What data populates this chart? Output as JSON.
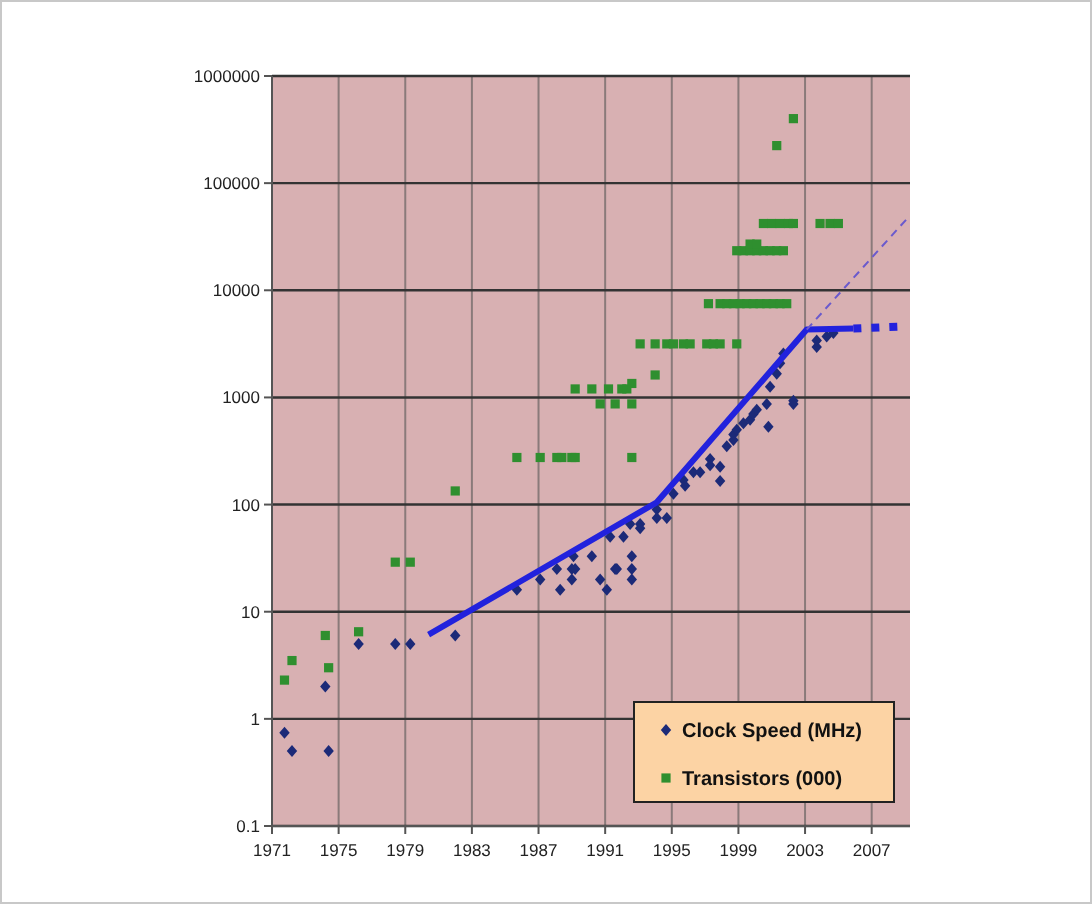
{
  "chart_data": {
    "type": "scatter",
    "log": "y",
    "grid": true,
    "legend": "bottom right",
    "xlim": [
      1971,
      2009.3
    ],
    "xticks": [
      1971,
      1975,
      1979,
      1983,
      1987,
      1991,
      1995,
      1999,
      2003,
      2007
    ],
    "ylim": [
      0.1,
      1000000
    ],
    "yticks": [
      0.1,
      1,
      10,
      100,
      1000,
      10000,
      100000,
      1000000
    ],
    "series": [
      {
        "name": "Clock Speed (MHz)",
        "marker": "diamond",
        "color": "#1c2a78",
        "x": [
          1971.75,
          1972.2,
          1974.2,
          1974.4,
          1976.2,
          1978.4,
          1979.3,
          1982,
          1985.7,
          1987.1,
          1988.1,
          1988.3,
          1989,
          1989,
          1989.2,
          1989.1,
          1990.2,
          1990.7,
          1991.1,
          1991.3,
          1991.6,
          1991.7,
          1992.1,
          1992.5,
          1992.6,
          1992.6,
          1992.6,
          1993.1,
          1993.1,
          1994.1,
          1994.1,
          1994.7,
          1995.1,
          1995.7,
          1995.8,
          1996.3,
          1996.7,
          1997.3,
          1997.3,
          1997.9,
          1997.9,
          1998.3,
          1998.7,
          1998.7,
          1998.9,
          1999.3,
          1999.7,
          1999.9,
          2000.1,
          2000.7,
          2000.8,
          2000.9,
          2001.3,
          2001.5,
          2001.7,
          2002.3,
          2002.3,
          2003.7,
          2003.7,
          2004.3,
          2004.7
        ],
        "values": [
          0.74,
          0.5,
          2,
          0.5,
          5,
          5,
          5,
          6,
          16,
          20,
          25,
          16,
          20,
          25,
          25,
          33,
          33,
          20,
          16,
          50,
          25,
          25,
          50,
          66,
          33,
          25,
          20,
          66,
          60,
          90,
          75,
          75,
          126,
          170,
          150,
          200,
          200,
          266,
          233,
          166,
          225,
          350,
          400,
          450,
          500,
          575,
          620,
          700,
          766,
          866,
          533,
          1260,
          1660,
          2090,
          2570,
          866,
          933,
          2950,
          3400,
          3700,
          4000
        ]
      },
      {
        "name": "Transistors (000)",
        "marker": "square",
        "color": "#2f8f2f",
        "x": [
          1971.75,
          1972.2,
          1974.2,
          1974.4,
          1976.2,
          1978.4,
          1979.3,
          1982,
          1985.7,
          1987.1,
          1988.1,
          1988.4,
          1989,
          1989.2,
          1992.6,
          1989.2,
          1990.2,
          1990.7,
          1991.2,
          1991.6,
          1992,
          1992.3,
          1992.6,
          1992.6,
          1994,
          1993.1,
          1994,
          1994.7,
          1995.1,
          1995.7,
          1996.1,
          1997.1,
          1997.5,
          1997.9,
          1998.9,
          1997.2,
          1997.9,
          1998.3,
          1998.7,
          1999.1,
          1999.5,
          1999.9,
          2000.3,
          2000.7,
          2001.1,
          2001.5,
          2001.9,
          1998.9,
          1999.3,
          1999.7,
          2000.1,
          2000.5,
          2000.9,
          2001.3,
          2001.7,
          1999.7,
          2000.1,
          2000.5,
          2001,
          2001.5,
          2002,
          2002.3,
          2003.9,
          2004.5,
          2005,
          2001.3,
          2002.3
        ],
        "values": [
          2.3,
          3.5,
          6,
          3,
          6.5,
          29,
          29,
          134,
          275,
          275,
          275,
          275,
          275,
          275,
          275,
          1200,
          1200,
          870,
          1200,
          870,
          1200,
          1200,
          1350,
          870,
          1620,
          3160,
          3160,
          3160,
          3160,
          3160,
          3160,
          3160,
          3160,
          3160,
          3160,
          7500,
          7500,
          7500,
          7500,
          7500,
          7500,
          7500,
          7500,
          7500,
          7500,
          7500,
          7500,
          23400,
          23400,
          23400,
          23400,
          23400,
          23400,
          23400,
          23400,
          27000,
          27000,
          42000,
          42000,
          42000,
          42000,
          42000,
          42000,
          42000,
          42000,
          224000,
          400000
        ]
      },
      {
        "type": "line",
        "marker": "none",
        "line_style": "solid",
        "color": "#2222dd",
        "x": [
          1980.4,
          1994.1,
          2003.1,
          2005.9
        ],
        "values": [
          6.1,
          105,
          4300,
          4400
        ]
      },
      {
        "type": "line",
        "marker": "none",
        "line_style": "dotted",
        "color": "#2222dd",
        "x": [
          2005.9,
          2008.9
        ],
        "values": [
          4400,
          4600
        ]
      },
      {
        "type": "line",
        "marker": "none",
        "line_style": "dashed",
        "color": "#6a5acd",
        "x": [
          2003.1,
          2009.3
        ],
        "values": [
          4300,
          50000
        ]
      }
    ]
  }
}
